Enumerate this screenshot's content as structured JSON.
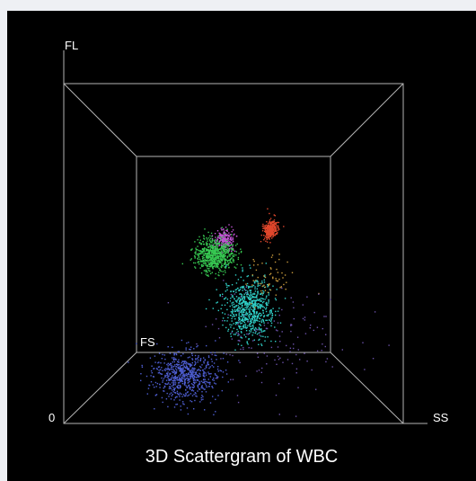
{
  "chart_data": {
    "type": "scatter",
    "title": "3D Scattergram of WBC",
    "axes": {
      "vertical": "FL",
      "depth": "FS",
      "horizontal": "SS",
      "origin": "0"
    },
    "grid": false,
    "legend": "none",
    "background": "#000000",
    "frame_color": "#b4b4b4",
    "clusters": [
      {
        "color": "#e0472c",
        "point_count": 300,
        "center": [
          0.66,
          0.61,
          0.78
        ],
        "spread": [
          0.014,
          0.02,
          0.08
        ]
      },
      {
        "color": "#c455d6",
        "point_count": 200,
        "center": [
          0.46,
          0.56,
          0.59
        ],
        "spread": [
          0.02,
          0.02,
          0.05
        ]
      },
      {
        "color": "#37c852",
        "point_count": 700,
        "center": [
          0.43,
          0.5,
          0.42
        ],
        "spread": [
          0.035,
          0.03,
          0.05
        ]
      },
      {
        "color": "#30d0c8",
        "point_count": 700,
        "center": [
          0.55,
          0.32,
          0.28
        ],
        "spread": [
          0.04,
          0.05,
          0.03
        ]
      },
      {
        "color": "#4e5ed2",
        "point_count": 700,
        "center": [
          0.35,
          0.12,
          0.12
        ],
        "spread": [
          0.05,
          0.04,
          0.02
        ]
      },
      {
        "color": "#c89a3c",
        "point_count": 60,
        "center": [
          0.62,
          0.42,
          0.34
        ],
        "spread": [
          0.04,
          0.04,
          0.05
        ]
      },
      {
        "color": "#6a50a8",
        "point_count": 150,
        "center": [
          0.62,
          0.22,
          0.15
        ],
        "spread": [
          0.12,
          0.08,
          0.06
        ]
      }
    ]
  }
}
